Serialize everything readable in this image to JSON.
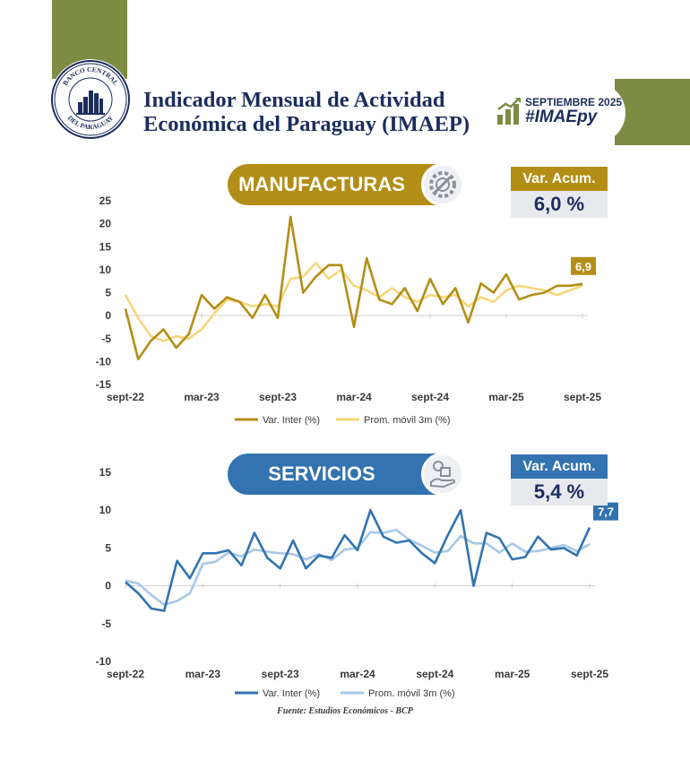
{
  "header": {
    "title_line1": "Indicador Mensual de Actividad",
    "title_line2": "Económica del Paraguay (IMAEP)",
    "logo_top_text": "BANCO CENTRAL",
    "logo_bottom_text": "DEL PARAGUAY",
    "badge_month": "SEPTIEMBRE 2025",
    "badge_hashtag": "#IMAEpy"
  },
  "colors": {
    "olive": "#7d8b43",
    "gold": "#b38e16",
    "gold_light": "#f5d77a",
    "blue": "#3273b0",
    "blue_light": "#a7c8e8",
    "navy": "#1b2d5c"
  },
  "sections": {
    "manufacturas": {
      "title": "MANUFACTURAS",
      "acum_label": "Var. Acum.",
      "acum_value": "6,0 %",
      "icon": "gear-wrench-icon"
    },
    "servicios": {
      "title": "SERVICIOS",
      "acum_label": "Var. Acum.",
      "acum_value": "5,4 %",
      "icon": "hand-services-icon"
    }
  },
  "chart_data": [
    {
      "type": "line",
      "name": "manufacturas",
      "x": [
        "sept-22",
        "oct-22",
        "nov-22",
        "dic-22",
        "ene-23",
        "feb-23",
        "mar-23",
        "abr-23",
        "may-23",
        "jun-23",
        "jul-23",
        "ago-23",
        "sept-23",
        "oct-23",
        "nov-23",
        "dic-23",
        "ene-24",
        "feb-24",
        "mar-24",
        "abr-24",
        "may-24",
        "jun-24",
        "jul-24",
        "ago-24",
        "sept-24",
        "oct-24",
        "nov-24",
        "dic-24",
        "ene-25",
        "feb-25",
        "mar-25",
        "abr-25",
        "may-25",
        "jun-25",
        "jul-25",
        "ago-25",
        "sept-25"
      ],
      "x_tick_labels": [
        "sept-22",
        "mar-23",
        "sept-23",
        "mar-24",
        "sept-24",
        "mar-25",
        "sept-25"
      ],
      "series": [
        {
          "name": "Var. Inter (%)",
          "color": "#b38e16",
          "values": [
            1.5,
            -9.5,
            -5.5,
            -3.0,
            -7.0,
            -4.0,
            4.5,
            1.5,
            4.0,
            3.0,
            -0.5,
            4.5,
            -0.5,
            21.5,
            5.0,
            8.5,
            11.0,
            11.0,
            -2.5,
            12.5,
            3.5,
            2.5,
            6.0,
            1.0,
            8.0,
            2.5,
            6.0,
            -1.5,
            7.0,
            5.0,
            9.0,
            3.5,
            4.5,
            5.0,
            6.5,
            6.5,
            6.9
          ]
        },
        {
          "name": "Prom. móvil 3m (%)",
          "color": "#f5d77a",
          "values": [
            4.5,
            -0.5,
            -4.5,
            -5.5,
            -4.5,
            -5.0,
            -3.0,
            0.5,
            3.5,
            3.0,
            2.0,
            2.5,
            2.0,
            8.0,
            8.5,
            11.5,
            8.0,
            10.0,
            6.5,
            5.5,
            4.0,
            6.0,
            4.0,
            3.0,
            4.5,
            4.0,
            4.5,
            2.0,
            4.0,
            3.0,
            5.5,
            6.5,
            6.0,
            5.5,
            4.5,
            5.5,
            6.5
          ]
        }
      ],
      "ylim": [
        -15,
        25
      ],
      "yticks": [
        -15,
        -10,
        -5,
        0,
        5,
        10,
        15,
        20,
        25
      ],
      "last_value_label": "6,9"
    },
    {
      "type": "line",
      "name": "servicios",
      "x": [
        "sept-22",
        "oct-22",
        "nov-22",
        "dic-22",
        "ene-23",
        "feb-23",
        "mar-23",
        "abr-23",
        "may-23",
        "jun-23",
        "jul-23",
        "ago-23",
        "sept-23",
        "oct-23",
        "nov-23",
        "dic-23",
        "ene-24",
        "feb-24",
        "mar-24",
        "abr-24",
        "may-24",
        "jun-24",
        "jul-24",
        "ago-24",
        "sept-24",
        "oct-24",
        "nov-24",
        "dic-24",
        "ene-25",
        "feb-25",
        "mar-25",
        "abr-25",
        "may-25",
        "jun-25",
        "jul-25",
        "ago-25",
        "sept-25"
      ],
      "x_tick_labels": [
        "sept-22",
        "mar-23",
        "sept-23",
        "mar-24",
        "sept-24",
        "mar-25",
        "sept-25"
      ],
      "series": [
        {
          "name": "Var. Inter (%)",
          "color": "#3273b0",
          "values": [
            0.5,
            -1.0,
            -3.0,
            -3.3,
            3.3,
            1.0,
            4.3,
            4.3,
            4.7,
            2.7,
            7.0,
            3.7,
            2.3,
            6.0,
            2.3,
            4.0,
            3.7,
            6.7,
            4.7,
            10.0,
            6.5,
            5.7,
            6.0,
            4.3,
            3.0,
            6.7,
            10.0,
            0.0,
            7.0,
            6.3,
            3.5,
            3.8,
            6.5,
            4.8,
            5.0,
            4.0,
            7.7
          ]
        },
        {
          "name": "Prom. móvil 3m (%)",
          "color": "#a7c8e8",
          "values": [
            0.7,
            0.3,
            -1.2,
            -2.5,
            -2.0,
            -1.0,
            2.9,
            3.2,
            4.4,
            3.9,
            4.8,
            4.5,
            4.3,
            4.2,
            3.5,
            4.2,
            3.4,
            4.8,
            5.0,
            7.1,
            7.0,
            7.4,
            6.1,
            5.3,
            4.4,
            4.6,
            6.6,
            5.6,
            5.6,
            4.4,
            5.6,
            4.5,
            4.6,
            5.0,
            5.4,
            4.6,
            5.5
          ]
        }
      ],
      "ylim": [
        -10,
        15
      ],
      "yticks": [
        -10,
        -5,
        0,
        5,
        10,
        15
      ],
      "last_value_label": "7,7"
    }
  ],
  "source": "Fuente: Estudios Económicos - BCP"
}
